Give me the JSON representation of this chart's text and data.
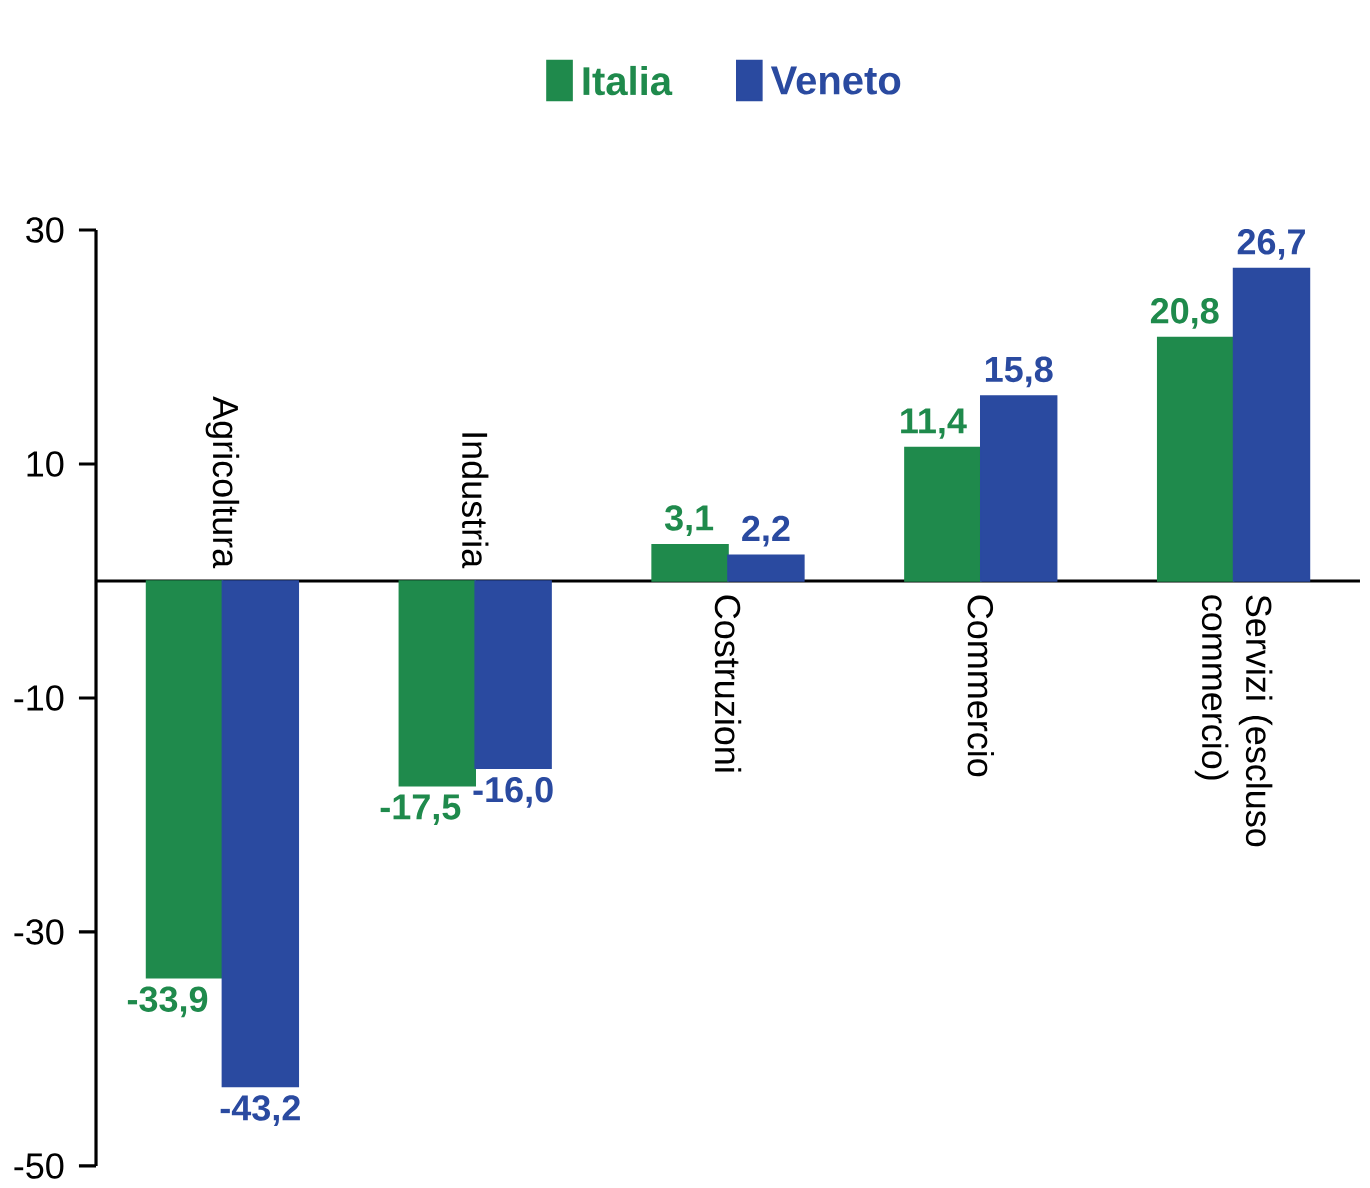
{
  "chart_data": {
    "type": "bar",
    "categories": [
      "Agricoltura",
      "Industria",
      "Costruzioni",
      "Commercio",
      "Servizi (escluso commercio)"
    ],
    "series": [
      {
        "name": "Italia",
        "color": "#1f8a4c",
        "values": [
          -33.9,
          -17.5,
          3.1,
          11.4,
          20.8
        ],
        "value_labels": [
          "-33,9",
          "-17,5",
          "3,1",
          "11,4",
          "20,8"
        ]
      },
      {
        "name": "Veneto",
        "color": "#2a4aa0",
        "values": [
          -43.2,
          -16.0,
          2.2,
          15.8,
          26.7
        ],
        "value_labels": [
          "-43,2",
          "-16,0",
          "2,2",
          "15,8",
          "26,7"
        ]
      }
    ],
    "ylim": [
      -50,
      30
    ],
    "yticks": [
      -50,
      -30,
      -10,
      10,
      30
    ],
    "grid": false,
    "legend": "top"
  }
}
